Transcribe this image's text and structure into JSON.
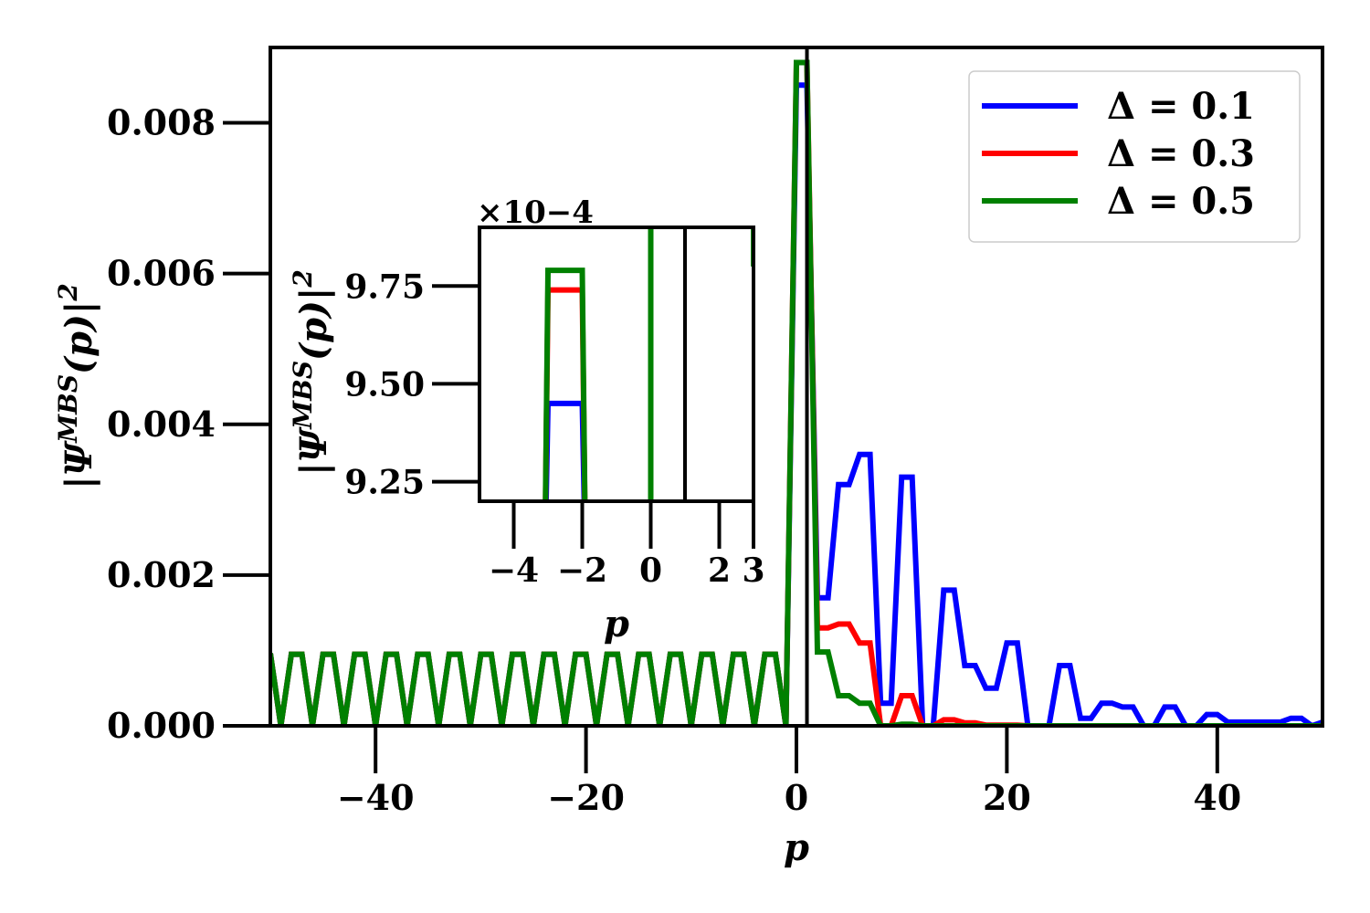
{
  "chart_data": [
    {
      "type": "line",
      "xlabel": "p",
      "ylabel": "|ΨMBS(p)|2",
      "xlim": [
        -50,
        50
      ],
      "ylim": [
        0,
        0.009
      ],
      "xticks": [
        -40,
        -20,
        0,
        20,
        40
      ],
      "xtick_labels": [
        "−40",
        "−20",
        "0",
        "20",
        "40"
      ],
      "yticks": [
        0,
        0.002,
        0.004,
        0.006,
        0.008
      ],
      "ytick_labels": [
        "0.000",
        "0.002",
        "0.004",
        "0.006",
        "0.008"
      ],
      "vline_x": 1,
      "grid": false,
      "legend_position": "top-right",
      "series": [
        {
          "name": "Δ = 0.1",
          "color": "#0000ff",
          "x": [
            -50,
            -49,
            -48,
            -47,
            -46,
            -45,
            -44,
            -43,
            -42,
            -41,
            -40,
            -39,
            -38,
            -37,
            -36,
            -35,
            -34,
            -33,
            -32,
            -31,
            -30,
            -29,
            -28,
            -27,
            -26,
            -25,
            -24,
            -23,
            -22,
            -21,
            -20,
            -19,
            -18,
            -17,
            -16,
            -15,
            -14,
            -13,
            -12,
            -11,
            -10,
            -9,
            -8,
            -7,
            -6,
            -5,
            -4,
            -3,
            -2,
            -1,
            0,
            1,
            2,
            3,
            4,
            5,
            6,
            7,
            8,
            9,
            10,
            11,
            12,
            13,
            14,
            15,
            16,
            17,
            18,
            19,
            20,
            21,
            22,
            23,
            24,
            25,
            26,
            27,
            28,
            29,
            30,
            31,
            32,
            33,
            34,
            35,
            36,
            37,
            38,
            39,
            40,
            41,
            42,
            43,
            44,
            45,
            46,
            47,
            48,
            49,
            50
          ],
          "y": [
            0.00096,
            0,
            0.00095,
            0.00095,
            0,
            0.00095,
            0.00095,
            0,
            0.00095,
            0.00095,
            0,
            0.00095,
            0.00095,
            0,
            0.00095,
            0.00095,
            0,
            0.00095,
            0.00095,
            0,
            0.00095,
            0.00095,
            0,
            0.00095,
            0.00095,
            0,
            0.00095,
            0.00095,
            0,
            0.00095,
            0.00095,
            0,
            0.00095,
            0.00095,
            0,
            0.00095,
            0.00095,
            0,
            0.00095,
            0.00095,
            0,
            0.00095,
            0.00095,
            0,
            0.00095,
            0.00095,
            0,
            0.00095,
            0.00095,
            0,
            0.0085,
            0.0085,
            0.0017,
            0.0017,
            0.0032,
            0.0032,
            0.0036,
            0.0036,
            0.0003,
            0.0003,
            0.0033,
            0.0033,
            0,
            0,
            0.0018,
            0.0018,
            0.0008,
            0.0008,
            0.0005,
            0.0005,
            0.0011,
            0.0011,
            0,
            0,
            0,
            0.0008,
            0.0008,
            0.0001,
            0.0001,
            0.0003,
            0.0003,
            0.00025,
            0.00025,
            0,
            0,
            0.00025,
            0.00025,
            0,
            0,
            0.00015,
            0.00015,
            5e-05,
            5e-05,
            5e-05,
            5e-05,
            5e-05,
            5e-05,
            0.0001,
            0.0001,
            0,
            5e-05
          ]
        },
        {
          "name": "Δ = 0.3",
          "color": "#ff0000",
          "x": [
            -50,
            -49,
            -48,
            -47,
            -46,
            -45,
            -44,
            -43,
            -42,
            -41,
            -40,
            -39,
            -38,
            -37,
            -36,
            -35,
            -34,
            -33,
            -32,
            -31,
            -30,
            -29,
            -28,
            -27,
            -26,
            -25,
            -24,
            -23,
            -22,
            -21,
            -20,
            -19,
            -18,
            -17,
            -16,
            -15,
            -14,
            -13,
            -12,
            -11,
            -10,
            -9,
            -8,
            -7,
            -6,
            -5,
            -4,
            -3,
            -2,
            -1,
            0,
            1,
            2,
            3,
            4,
            5,
            6,
            7,
            8,
            9,
            10,
            11,
            12,
            13,
            14,
            15,
            16,
            17,
            18,
            19,
            20,
            21,
            22,
            23,
            24,
            25,
            26,
            27,
            28,
            29,
            30,
            31,
            32,
            33,
            34,
            35,
            36,
            37,
            38,
            39,
            40,
            41,
            42,
            43,
            44,
            45,
            46,
            47,
            48,
            49,
            50
          ],
          "y": [
            0.00096,
            0,
            0.00095,
            0.00095,
            0,
            0.00095,
            0.00095,
            0,
            0.00095,
            0.00095,
            0,
            0.00095,
            0.00095,
            0,
            0.00095,
            0.00095,
            0,
            0.00095,
            0.00095,
            0,
            0.00095,
            0.00095,
            0,
            0.00095,
            0.00095,
            0,
            0.00095,
            0.00095,
            0,
            0.00095,
            0.00095,
            0,
            0.00095,
            0.00095,
            0,
            0.00095,
            0.00095,
            0,
            0.00095,
            0.00095,
            0,
            0.00095,
            0.00095,
            0,
            0.00095,
            0.00095,
            0,
            0.00095,
            0.00095,
            0,
            0.0088,
            0.0088,
            0.0013,
            0.0013,
            0.00135,
            0.00135,
            0.0011,
            0.0011,
            0,
            0,
            0.0004,
            0.0004,
            0,
            0,
            8e-05,
            8e-05,
            4e-05,
            4e-05,
            1e-05,
            1e-05,
            1e-05,
            1e-05,
            0,
            0,
            0,
            0,
            0,
            0,
            0,
            0,
            0,
            0,
            0,
            0,
            0,
            0,
            0,
            0,
            0,
            0,
            0,
            0,
            0,
            0,
            0,
            0,
            0,
            0,
            0,
            0,
            0
          ]
        },
        {
          "name": "Δ = 0.5",
          "color": "#008000",
          "x": [
            -50,
            -49,
            -48,
            -47,
            -46,
            -45,
            -44,
            -43,
            -42,
            -41,
            -40,
            -39,
            -38,
            -37,
            -36,
            -35,
            -34,
            -33,
            -32,
            -31,
            -30,
            -29,
            -28,
            -27,
            -26,
            -25,
            -24,
            -23,
            -22,
            -21,
            -20,
            -19,
            -18,
            -17,
            -16,
            -15,
            -14,
            -13,
            -12,
            -11,
            -10,
            -9,
            -8,
            -7,
            -6,
            -5,
            -4,
            -3,
            -2,
            -1,
            0,
            1,
            2,
            3,
            4,
            5,
            6,
            7,
            8,
            9,
            10,
            11,
            12,
            13,
            14,
            15,
            16,
            17,
            18,
            19,
            20,
            21,
            22,
            23,
            24,
            25,
            26,
            27,
            28,
            29,
            30,
            31,
            32,
            33,
            34,
            35,
            36,
            37,
            38,
            39,
            40,
            41,
            42,
            43,
            44,
            45,
            46,
            47,
            48,
            49,
            50
          ],
          "y": [
            0.00096,
            0,
            0.00095,
            0.00095,
            0,
            0.00095,
            0.00095,
            0,
            0.00095,
            0.00095,
            0,
            0.00095,
            0.00095,
            0,
            0.00095,
            0.00095,
            0,
            0.00095,
            0.00095,
            0,
            0.00095,
            0.00095,
            0,
            0.00095,
            0.00095,
            0,
            0.00095,
            0.00095,
            0,
            0.00095,
            0.00095,
            0,
            0.00095,
            0.00095,
            0,
            0.00095,
            0.00095,
            0,
            0.00095,
            0.00095,
            0,
            0.00095,
            0.00095,
            0,
            0.00095,
            0.00095,
            0,
            0.00095,
            0.00095,
            0,
            0.0088,
            0.0088,
            0.00098,
            0.00098,
            0.0004,
            0.0004,
            0.0003,
            0.0003,
            0,
            0,
            2e-05,
            2e-05,
            0,
            0,
            0,
            0,
            0,
            0,
            0,
            0,
            0,
            0,
            0,
            0,
            0,
            0,
            0,
            0,
            0,
            0,
            0,
            0,
            0,
            0,
            0,
            0,
            0,
            0,
            0,
            0,
            0,
            0,
            0,
            0,
            0,
            0,
            0,
            0,
            0,
            0,
            0
          ]
        }
      ]
    },
    {
      "type": "line",
      "role": "inset",
      "xlabel": "p",
      "ylabel": "|ΨMBS(p)|2",
      "offset_text": "×10−4",
      "xlim": [
        -5,
        3
      ],
      "ylim": [
        9.2,
        9.9
      ],
      "xticks": [
        -4,
        -2,
        0,
        2,
        3
      ],
      "xtick_labels": [
        "−4",
        "−2",
        "0",
        "2",
        "3"
      ],
      "yticks": [
        9.25,
        9.5,
        9.75
      ],
      "ytick_labels": [
        "9.25",
        "9.50",
        "9.75"
      ],
      "vline_x": 1,
      "series": [
        {
          "name": "Δ = 0.1",
          "color": "#0000ff",
          "x": [
            -3.1,
            -3.0,
            -2.0,
            -1.9
          ],
          "y": [
            9.0,
            9.45,
            9.45,
            9.0
          ]
        },
        {
          "name": "Δ = 0.3",
          "color": "#ff0000",
          "x": [
            -3.1,
            -3.0,
            -2.0,
            -1.9
          ],
          "y": [
            9.0,
            9.74,
            9.74,
            9.0
          ]
        },
        {
          "name": "Δ = 0.5",
          "color": "#008000",
          "x": [
            -3.1,
            -3.0,
            -2.0,
            -1.9,
            0.0,
            0.0,
            3.0,
            3.0
          ],
          "y": [
            9.0,
            9.79,
            9.79,
            9.0,
            9.0,
            9.95,
            9.95,
            9.8
          ]
        }
      ]
    }
  ]
}
